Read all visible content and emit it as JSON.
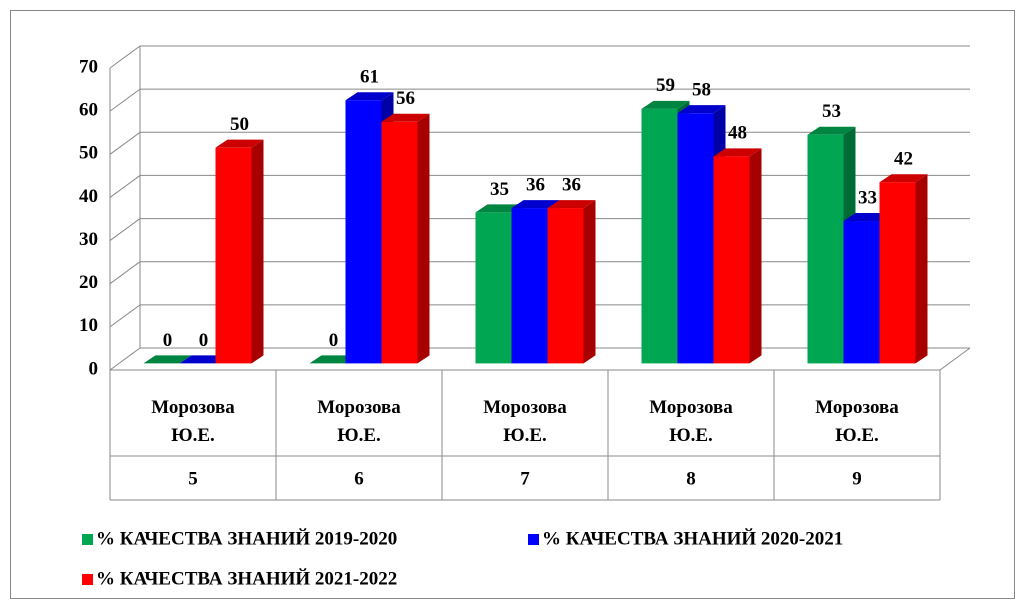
{
  "chart_data": {
    "type": "bar3d",
    "categories": [
      "Морозова Ю.Е.",
      "Морозова Ю.Е.",
      "Морозова Ю.Е.",
      "Морозова Ю.Е.",
      "Морозова Ю.Е."
    ],
    "groups": [
      "5",
      "6",
      "7",
      "8",
      "9"
    ],
    "series": [
      {
        "name": "% КАЧЕСТВА ЗНАНИЙ 2019-2020",
        "color": "#00a651",
        "values": [
          0,
          0,
          35,
          59,
          53
        ]
      },
      {
        "name": "% КАЧЕСТВА ЗНАНИЙ 2020-2021",
        "color": "#0000ff",
        "values": [
          0,
          61,
          36,
          58,
          33
        ]
      },
      {
        "name": "% КАЧЕСТВА ЗНАНИЙ 2021-2022",
        "color": "#ff0000",
        "values": [
          50,
          56,
          36,
          48,
          42
        ]
      }
    ],
    "ylim": [
      0,
      70
    ],
    "yticks": [
      0,
      10,
      20,
      30,
      40,
      50,
      60,
      70
    ],
    "grid": true,
    "legend": "bottom"
  }
}
